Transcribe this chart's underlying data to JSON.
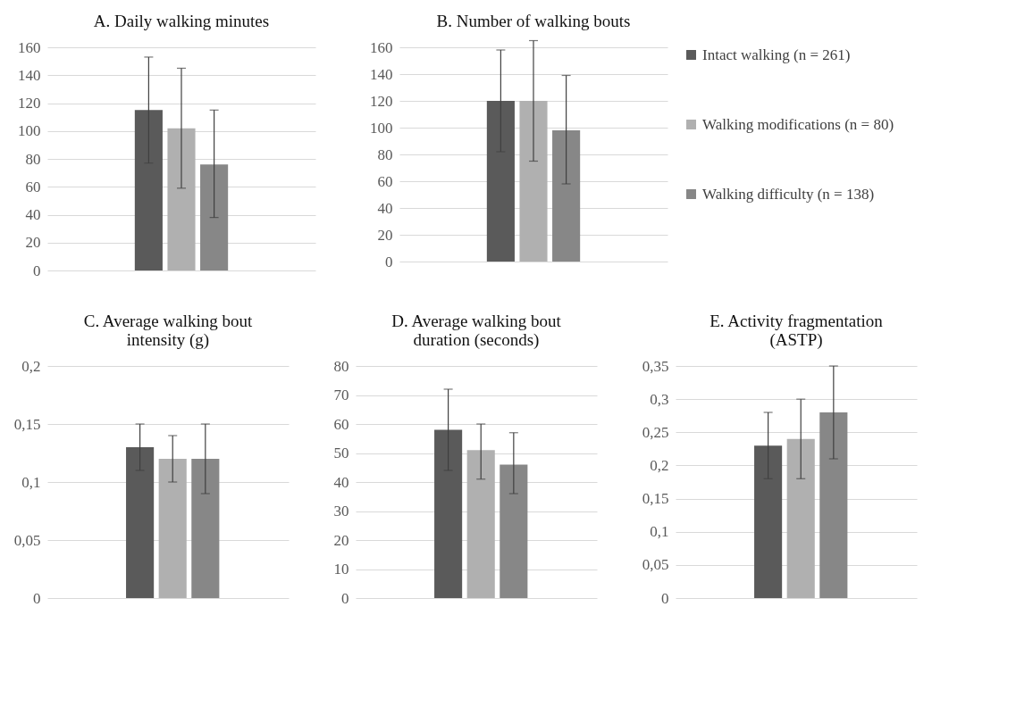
{
  "chart_data": [
    {
      "type": "bar",
      "title": "A. Daily walking minutes",
      "categories": [
        null
      ],
      "ylim": [
        0,
        160
      ],
      "yticks": [
        0,
        20,
        40,
        60,
        80,
        100,
        120,
        140,
        160
      ],
      "grid": "y",
      "legend": false,
      "tick_labels": "y",
      "series": [
        {
          "color": "#5a5a5a",
          "values": [
            115
          ],
          "errors": [
            [
              77,
              153
            ]
          ]
        },
        {
          "color": "#b0b0b0",
          "values": [
            102
          ],
          "errors": [
            [
              59,
              145
            ]
          ]
        },
        {
          "color": "#878787",
          "values": [
            76
          ],
          "errors": [
            [
              38,
              115
            ]
          ]
        }
      ]
    },
    {
      "type": "bar",
      "title": "B. Number of walking bouts",
      "categories": [
        null
      ],
      "ylim": [
        0,
        160
      ],
      "yticks": [
        0,
        20,
        40,
        60,
        80,
        100,
        120,
        140,
        160
      ],
      "grid": "y",
      "legend": "right",
      "tick_labels": "y",
      "series": [
        {
          "name": "Intact walking (n = 261)",
          "color": "#5a5a5a",
          "values": [
            120
          ],
          "errors": [
            [
              82,
              158
            ]
          ]
        },
        {
          "name": "Walking modifications (n = 80)",
          "color": "#b0b0b0",
          "values": [
            120
          ],
          "errors": [
            [
              75,
              165
            ]
          ]
        },
        {
          "name": "Walking difficulty (n = 138)",
          "color": "#878787",
          "values": [
            98
          ],
          "errors": [
            [
              58,
              139
            ]
          ]
        }
      ]
    },
    {
      "type": "bar",
      "title": "C. Average walking bout intensity (g)",
      "categories": [
        null
      ],
      "ylim": [
        0,
        0.2
      ],
      "yticks": [
        {
          "value": 0,
          "label": "0"
        },
        {
          "value": 0.05,
          "label": "0,05"
        },
        {
          "value": 0.1,
          "label": "0,1"
        },
        {
          "value": 0.15,
          "label": "0,15"
        },
        {
          "value": 0.2,
          "label": "0,2"
        }
      ],
      "grid": "y",
      "legend": false,
      "tick_labels": "y",
      "series": [
        {
          "color": "#5a5a5a",
          "values": [
            0.13
          ],
          "errors": [
            [
              0.11,
              0.15
            ]
          ]
        },
        {
          "color": "#b0b0b0",
          "values": [
            0.12
          ],
          "errors": [
            [
              0.1,
              0.14
            ]
          ]
        },
        {
          "color": "#878787",
          "values": [
            0.12
          ],
          "errors": [
            [
              0.09,
              0.15
            ]
          ]
        }
      ]
    },
    {
      "type": "bar",
      "title": "D. Average walking bout duration (seconds)",
      "categories": [
        null
      ],
      "ylim": [
        0,
        80
      ],
      "yticks": [
        0,
        10,
        20,
        30,
        40,
        50,
        60,
        70,
        80
      ],
      "grid": "y",
      "legend": false,
      "tick_labels": "y",
      "series": [
        {
          "color": "#5a5a5a",
          "values": [
            58
          ],
          "errors": [
            [
              44,
              72
            ]
          ]
        },
        {
          "color": "#b0b0b0",
          "values": [
            51
          ],
          "errors": [
            [
              41,
              60
            ]
          ]
        },
        {
          "color": "#878787",
          "values": [
            46
          ],
          "errors": [
            [
              36,
              57
            ]
          ]
        }
      ]
    },
    {
      "type": "bar",
      "title": "E. Activity fragmentation (ASTP)",
      "categories": [
        null
      ],
      "ylim": [
        0,
        0.35
      ],
      "yticks": [
        {
          "value": 0,
          "label": "0"
        },
        {
          "value": 0.05,
          "label": "0,05"
        },
        {
          "value": 0.1,
          "label": "0,1"
        },
        {
          "value": 0.15,
          "label": "0,15"
        },
        {
          "value": 0.2,
          "label": "0,2"
        },
        {
          "value": 0.25,
          "label": "0,25"
        },
        {
          "value": 0.3,
          "label": "0,3"
        },
        {
          "value": 0.35,
          "label": "0,35"
        }
      ],
      "grid": "y",
      "legend": false,
      "tick_labels": "y",
      "series": [
        {
          "color": "#5a5a5a",
          "values": [
            0.23
          ],
          "errors": [
            [
              0.18,
              0.28
            ]
          ]
        },
        {
          "color": "#b0b0b0",
          "values": [
            0.24
          ],
          "errors": [
            [
              0.18,
              0.3
            ]
          ]
        },
        {
          "color": "#878787",
          "values": [
            0.28
          ],
          "errors": [
            [
              0.21,
              0.35
            ]
          ]
        }
      ]
    }
  ]
}
